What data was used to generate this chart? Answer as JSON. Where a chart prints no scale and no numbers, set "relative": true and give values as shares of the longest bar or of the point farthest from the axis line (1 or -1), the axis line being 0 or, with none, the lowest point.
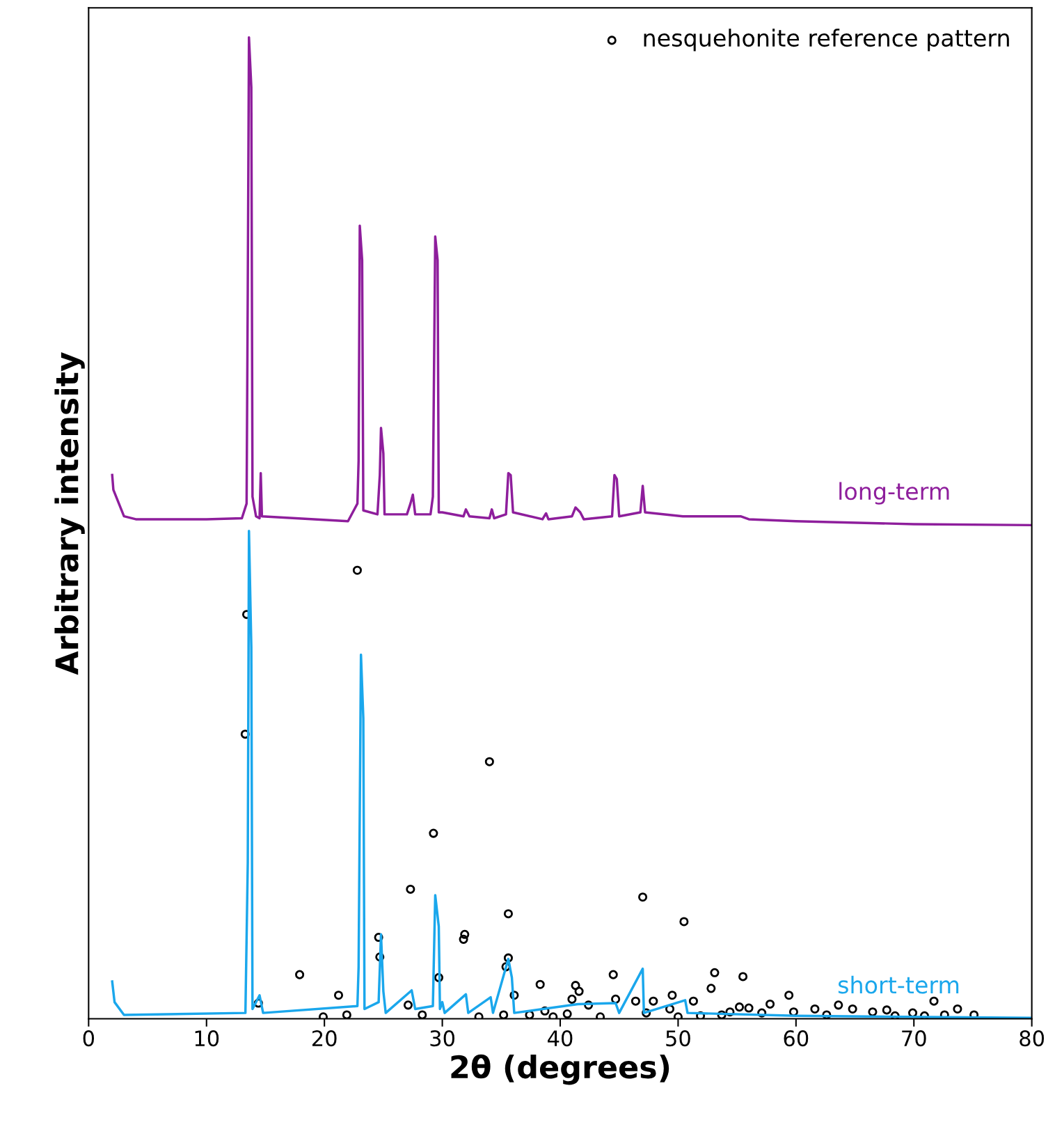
{
  "chart_data": {
    "type": "line",
    "xlabel": "2θ (degrees)",
    "ylabel": "Arbitrary intensity",
    "relative": true,
    "xlim": [
      0,
      80
    ],
    "xticks": [
      0,
      10,
      20,
      30,
      40,
      50,
      60,
      70,
      80
    ],
    "tick_labels": "x",
    "grid": false,
    "legend": "top right",
    "series": [
      {
        "name": "long-term",
        "color": "#8e1e9c",
        "marker": "none",
        "x": [
          2,
          2.1,
          3,
          4,
          10,
          13,
          13.4,
          13.5,
          13.6,
          13.8,
          13.9,
          14.2,
          14.5,
          14.6,
          14.7,
          22,
          22.8,
          22.9,
          23.0,
          23.2,
          23.3,
          24.5,
          24.7,
          24.8,
          25.0,
          25.1,
          27,
          27.3,
          27.5,
          27.7,
          29,
          29.2,
          29.4,
          29.6,
          29.7,
          30,
          31.8,
          32.0,
          32.3,
          34.0,
          34.2,
          34.4,
          35.4,
          35.6,
          35.8,
          36.0,
          38.5,
          38.8,
          39,
          41,
          41.3,
          41.7,
          42,
          44.4,
          44.6,
          44.8,
          45,
          46.8,
          47.0,
          47.2,
          50.4,
          55.3,
          56,
          60,
          70,
          80
        ],
        "values": [
          0.554,
          0.539,
          0.512,
          0.509,
          0.509,
          0.51,
          0.525,
          0.744,
          1.0,
          0.949,
          0.532,
          0.512,
          0.51,
          0.556,
          0.512,
          0.507,
          0.525,
          0.569,
          0.808,
          0.773,
          0.518,
          0.514,
          0.554,
          0.602,
          0.576,
          0.514,
          0.514,
          0.525,
          0.534,
          0.514,
          0.514,
          0.532,
          0.797,
          0.773,
          0.516,
          0.516,
          0.512,
          0.519,
          0.512,
          0.51,
          0.519,
          0.51,
          0.514,
          0.556,
          0.554,
          0.516,
          0.509,
          0.515,
          0.509,
          0.512,
          0.521,
          0.516,
          0.509,
          0.512,
          0.554,
          0.55,
          0.512,
          0.516,
          0.543,
          0.516,
          0.512,
          0.512,
          0.509,
          0.507,
          0.504,
          0.503
        ]
      },
      {
        "name": "short-term",
        "color": "#1aa7ec",
        "marker": "none",
        "x": [
          2,
          2.2,
          3,
          13.3,
          13.5,
          13.6,
          13.8,
          13.9,
          14.5,
          14.8,
          22.8,
          22.9,
          23.1,
          23.3,
          23.4,
          24.6,
          24.8,
          25.0,
          25.2,
          27.4,
          27.7,
          29.2,
          29.4,
          29.7,
          29.8,
          30,
          30.2,
          32.0,
          32.2,
          34.1,
          34.3,
          35.6,
          35.9,
          36.1,
          41.5,
          44.7,
          45,
          47.0,
          47.1,
          50.6,
          50.8,
          60,
          80
        ],
        "values": [
          0.038,
          0.017,
          0.004,
          0.006,
          0.159,
          0.497,
          0.379,
          0.01,
          0.024,
          0.006,
          0.013,
          0.053,
          0.371,
          0.306,
          0.01,
          0.017,
          0.086,
          0.028,
          0.006,
          0.029,
          0.01,
          0.013,
          0.126,
          0.094,
          0.01,
          0.017,
          0.006,
          0.025,
          0.006,
          0.022,
          0.006,
          0.061,
          0.042,
          0.006,
          0.015,
          0.016,
          0.006,
          0.051,
          0.006,
          0.019,
          0.006,
          0.003,
          0.001
        ]
      },
      {
        "name": "nesquehonite reference pattern",
        "type": "scatter",
        "color": "#000000",
        "marker": "circle",
        "x": [
          22.79,
          13.41,
          13.28,
          34.0,
          29.25,
          27.3,
          47.0,
          35.6,
          50.5,
          24.6,
          31.9,
          31.8,
          24.7,
          35.6,
          17.9,
          29.7,
          44.5,
          53.1,
          55.5,
          38.3,
          41.3,
          35.4,
          21.2,
          14.4,
          27.1,
          52.8,
          49.5,
          51.3,
          41.6,
          36.1,
          59.4,
          57.8,
          71.7,
          63.6,
          55.2,
          61.6,
          73.7,
          44.7,
          47.9,
          46.4,
          42.4,
          38.7,
          19.9,
          21.9,
          28.3,
          33.1,
          35.2,
          37.4,
          39.4,
          40.6,
          43.4,
          47.3,
          50.0,
          51.9,
          53.7,
          56.0,
          57.1,
          59.8,
          62.6,
          64.8,
          66.5,
          68.4,
          69.9,
          70.9,
          72.6,
          75.1,
          41.0,
          49.3,
          54.4,
          67.7
        ],
        "values": [
          0.457,
          0.412,
          0.29,
          0.262,
          0.189,
          0.132,
          0.124,
          0.107,
          0.099,
          0.083,
          0.086,
          0.081,
          0.063,
          0.062,
          0.045,
          0.042,
          0.045,
          0.047,
          0.043,
          0.035,
          0.034,
          0.053,
          0.024,
          0.016,
          0.014,
          0.031,
          0.024,
          0.018,
          0.028,
          0.024,
          0.024,
          0.015,
          0.018,
          0.014,
          0.012,
          0.01,
          0.01,
          0.02,
          0.018,
          0.018,
          0.014,
          0.008,
          0.002,
          0.004,
          0.004,
          0.002,
          0.004,
          0.004,
          0.002,
          0.005,
          0.002,
          0.006,
          0.002,
          0.003,
          0.004,
          0.011,
          0.006,
          0.007,
          0.004,
          0.01,
          0.007,
          0.003,
          0.006,
          0.003,
          0.004,
          0.004,
          0.02,
          0.01,
          0.007,
          0.009
        ]
      }
    ]
  }
}
